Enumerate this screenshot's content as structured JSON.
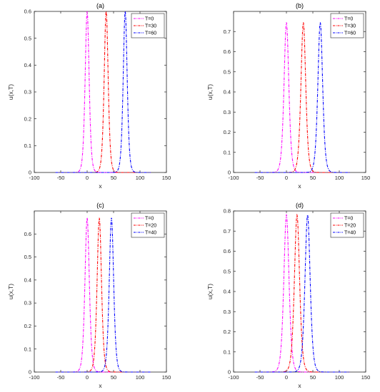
{
  "chart_data": [
    {
      "type": "line",
      "title": "(a)",
      "xlabel": "x",
      "ylabel": "u(x,T)",
      "xlim": [
        -100,
        150
      ],
      "ylim": [
        0,
        0.6
      ],
      "xticks": [
        -100,
        -50,
        0,
        50,
        100,
        150
      ],
      "yticks": [
        0,
        0.1,
        0.2,
        0.3,
        0.4,
        0.5,
        0.6
      ],
      "x_domain": [
        -60,
        120
      ],
      "width": 5.0,
      "legend_position": "top-right",
      "series": [
        {
          "name": "T=0",
          "color": "#ff00ff",
          "center": 0,
          "amplitude": 0.6
        },
        {
          "name": "T=30",
          "color": "#ff0000",
          "center": 36,
          "amplitude": 0.6
        },
        {
          "name": "T=60",
          "color": "#0000ff",
          "center": 72,
          "amplitude": 0.6
        }
      ]
    },
    {
      "type": "line",
      "title": "(b)",
      "xlabel": "x",
      "ylabel": "u(x,T)",
      "xlim": [
        -100,
        150
      ],
      "ylim": [
        0,
        0.8
      ],
      "xticks": [
        -100,
        -50,
        0,
        50,
        100,
        150
      ],
      "yticks": [
        0,
        0.1,
        0.2,
        0.3,
        0.4,
        0.5,
        0.6,
        0.7
      ],
      "x_domain": [
        -60,
        120
      ],
      "width": 6.0,
      "legend_position": "top-right",
      "series": [
        {
          "name": "T=0",
          "color": "#ff00ff",
          "center": 0,
          "amplitude": 0.745
        },
        {
          "name": "T=30",
          "color": "#ff0000",
          "center": 32,
          "amplitude": 0.745
        },
        {
          "name": "T=60",
          "color": "#0000ff",
          "center": 64,
          "amplitude": 0.745
        }
      ]
    },
    {
      "type": "line",
      "title": "(c)",
      "xlabel": "x",
      "ylabel": "u(x,T)",
      "xlim": [
        -100,
        150
      ],
      "ylim": [
        0,
        0.7
      ],
      "xticks": [
        -100,
        -50,
        0,
        50,
        100,
        150
      ],
      "yticks": [
        0,
        0.1,
        0.2,
        0.3,
        0.4,
        0.5,
        0.6
      ],
      "x_domain": [
        -60,
        120
      ],
      "width": 5.5,
      "legend_position": "top-right",
      "series": [
        {
          "name": "T=0",
          "color": "#ff00ff",
          "center": 0,
          "amplitude": 0.67
        },
        {
          "name": "T=20",
          "color": "#ff0000",
          "center": 23,
          "amplitude": 0.67
        },
        {
          "name": "T=40",
          "color": "#0000ff",
          "center": 46,
          "amplitude": 0.67
        }
      ]
    },
    {
      "type": "line",
      "title": "(d)",
      "xlabel": "x",
      "ylabel": "u(x,T)",
      "xlim": [
        -100,
        150
      ],
      "ylim": [
        0,
        0.8
      ],
      "xticks": [
        -100,
        -50,
        0,
        50,
        100,
        150
      ],
      "yticks": [
        0,
        0.1,
        0.2,
        0.3,
        0.4,
        0.5,
        0.6,
        0.7,
        0.8
      ],
      "x_domain": [
        -60,
        120
      ],
      "width": 6.5,
      "legend_position": "top-right",
      "series": [
        {
          "name": "T=0",
          "color": "#ff00ff",
          "center": 0,
          "amplitude": 0.78
        },
        {
          "name": "T=20",
          "color": "#ff0000",
          "center": 20,
          "amplitude": 0.78
        },
        {
          "name": "T=40",
          "color": "#0000ff",
          "center": 40,
          "amplitude": 0.78
        }
      ]
    }
  ]
}
